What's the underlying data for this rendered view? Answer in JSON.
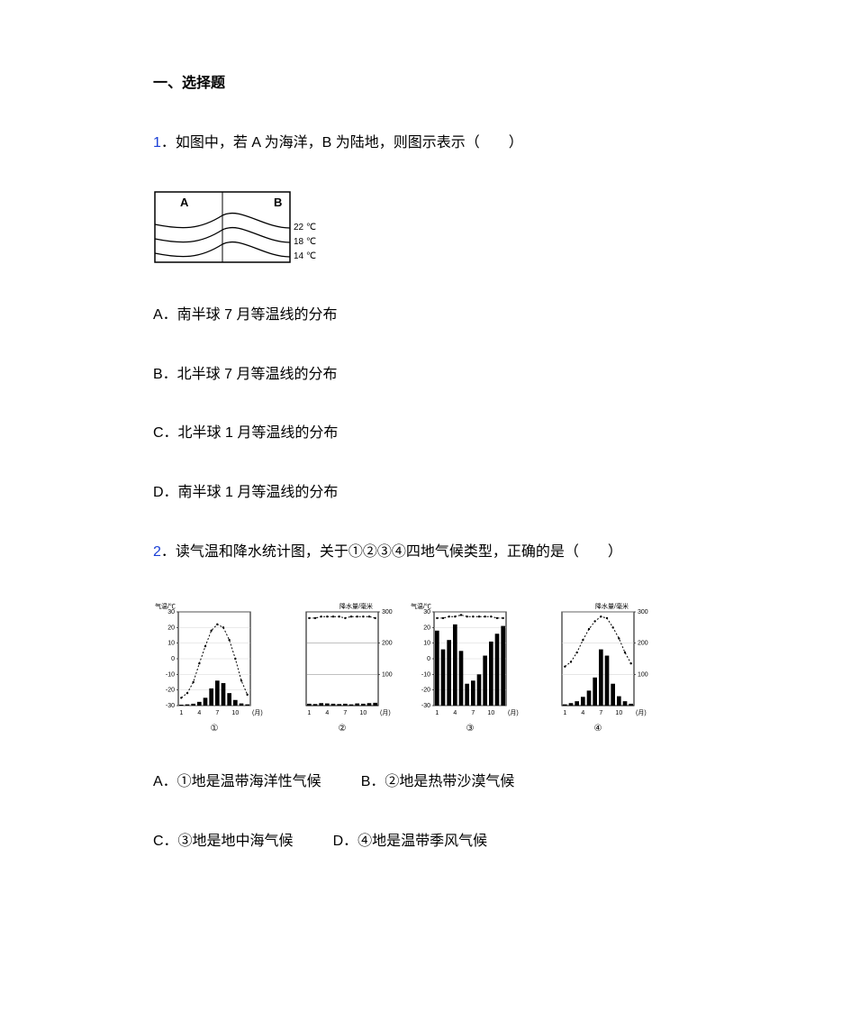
{
  "section_title": "一、选择题",
  "q1": {
    "number": "1",
    "text": "．如图中，若 A 为海洋，B 为陆地，则图示表示（　　）",
    "figure": {
      "label_a": "A",
      "label_b": "B",
      "temps": [
        "22 ℃",
        "18 ℃",
        "14 ℃"
      ],
      "border_color": "#000000",
      "line_color": "#000000",
      "background": "#ffffff",
      "width": 190,
      "height": 86
    },
    "options": {
      "a": "A．南半球 7 月等温线的分布",
      "b": "B．北半球 7 月等温线的分布",
      "c": "C．北半球 1 月等温线的分布",
      "d": "D．南半球 1 月等温线的分布"
    }
  },
  "q2": {
    "number": "2",
    "text": "．读气温和降水统计图，关于①②③④四地气候类型，正确的是（　　）",
    "options": {
      "a": "A．①地是温带海洋性气候",
      "b": "B．②地是热带沙漠气候",
      "c": "C．③地是地中海气候",
      "d": "D．④地是温带季风气候"
    },
    "charts": [
      {
        "id": "①",
        "temp_label": "气温/℃",
        "precip_label": "",
        "x_label": "(月)",
        "x_ticks": [
          "1",
          "4",
          "7",
          "10"
        ],
        "temp_scale": {
          "min": -30,
          "max": 30,
          "ticks": [
            30,
            20,
            10,
            0,
            -10,
            -20,
            -30
          ]
        },
        "precip_scale": {
          "min": 0,
          "max": 300
        },
        "temp_values": [
          -25,
          -22,
          -15,
          -3,
          8,
          18,
          22,
          20,
          12,
          0,
          -14,
          -23
        ],
        "precip_values": [
          3,
          4,
          6,
          12,
          25,
          55,
          80,
          72,
          40,
          18,
          7,
          4
        ],
        "line_color": "#000000",
        "bar_color": "#000000",
        "text_color": "#000000",
        "grid_color": "#cccccc",
        "background": "#ffffff",
        "font_size": 7
      },
      {
        "id": "②",
        "temp_label": "",
        "precip_label": "降水量/毫米",
        "x_label": "(月)",
        "x_ticks": [
          "1",
          "4",
          "7",
          "10"
        ],
        "temp_scale": {
          "min": -30,
          "max": 30,
          "ticks": []
        },
        "precip_scale": {
          "min": 0,
          "max": 300,
          "ticks": [
            300,
            200,
            100
          ]
        },
        "temp_values": [
          26,
          26,
          27,
          27,
          27,
          27,
          26,
          27,
          27,
          27,
          27,
          26
        ],
        "precip_values": [
          6,
          5,
          8,
          7,
          6,
          5,
          6,
          4,
          7,
          6,
          8,
          9
        ],
        "line_color": "#000000",
        "bar_color": "#000000",
        "text_color": "#000000",
        "grid_color": "#808080",
        "background": "#ffffff",
        "font_size": 7
      },
      {
        "id": "③",
        "temp_label": "气温/℃",
        "precip_label": "",
        "x_label": "(月)",
        "x_ticks": [
          "1",
          "4",
          "7",
          "10"
        ],
        "temp_scale": {
          "min": -30,
          "max": 30,
          "ticks": [
            30,
            20,
            10,
            0,
            -10,
            -20,
            -30
          ]
        },
        "precip_scale": {
          "min": 0,
          "max": 300
        },
        "temp_values": [
          26,
          26,
          27,
          27,
          28,
          27,
          27,
          27,
          27,
          27,
          26,
          26
        ],
        "precip_values": [
          240,
          180,
          210,
          260,
          175,
          70,
          80,
          100,
          160,
          205,
          230,
          255
        ],
        "line_color": "#000000",
        "bar_color": "#000000",
        "text_color": "#000000",
        "grid_color": "#cccccc",
        "background": "#ffffff",
        "font_size": 7
      },
      {
        "id": "④",
        "temp_label": "",
        "precip_label": "降水量/毫米",
        "x_label": "(月)",
        "x_ticks": [
          "1",
          "4",
          "7",
          "10"
        ],
        "temp_scale": {
          "min": -30,
          "max": 30,
          "ticks": []
        },
        "precip_scale": {
          "min": 0,
          "max": 300,
          "ticks": [
            300,
            200,
            100
          ]
        },
        "temp_values": [
          -5,
          -2,
          4,
          12,
          19,
          24,
          27,
          26,
          20,
          13,
          4,
          -3
        ],
        "precip_values": [
          4,
          8,
          14,
          28,
          48,
          90,
          180,
          160,
          70,
          30,
          14,
          6
        ],
        "line_color": "#000000",
        "bar_color": "#000000",
        "text_color": "#000000",
        "grid_color": "#cccccc",
        "background": "#ffffff",
        "font_size": 7
      }
    ]
  }
}
